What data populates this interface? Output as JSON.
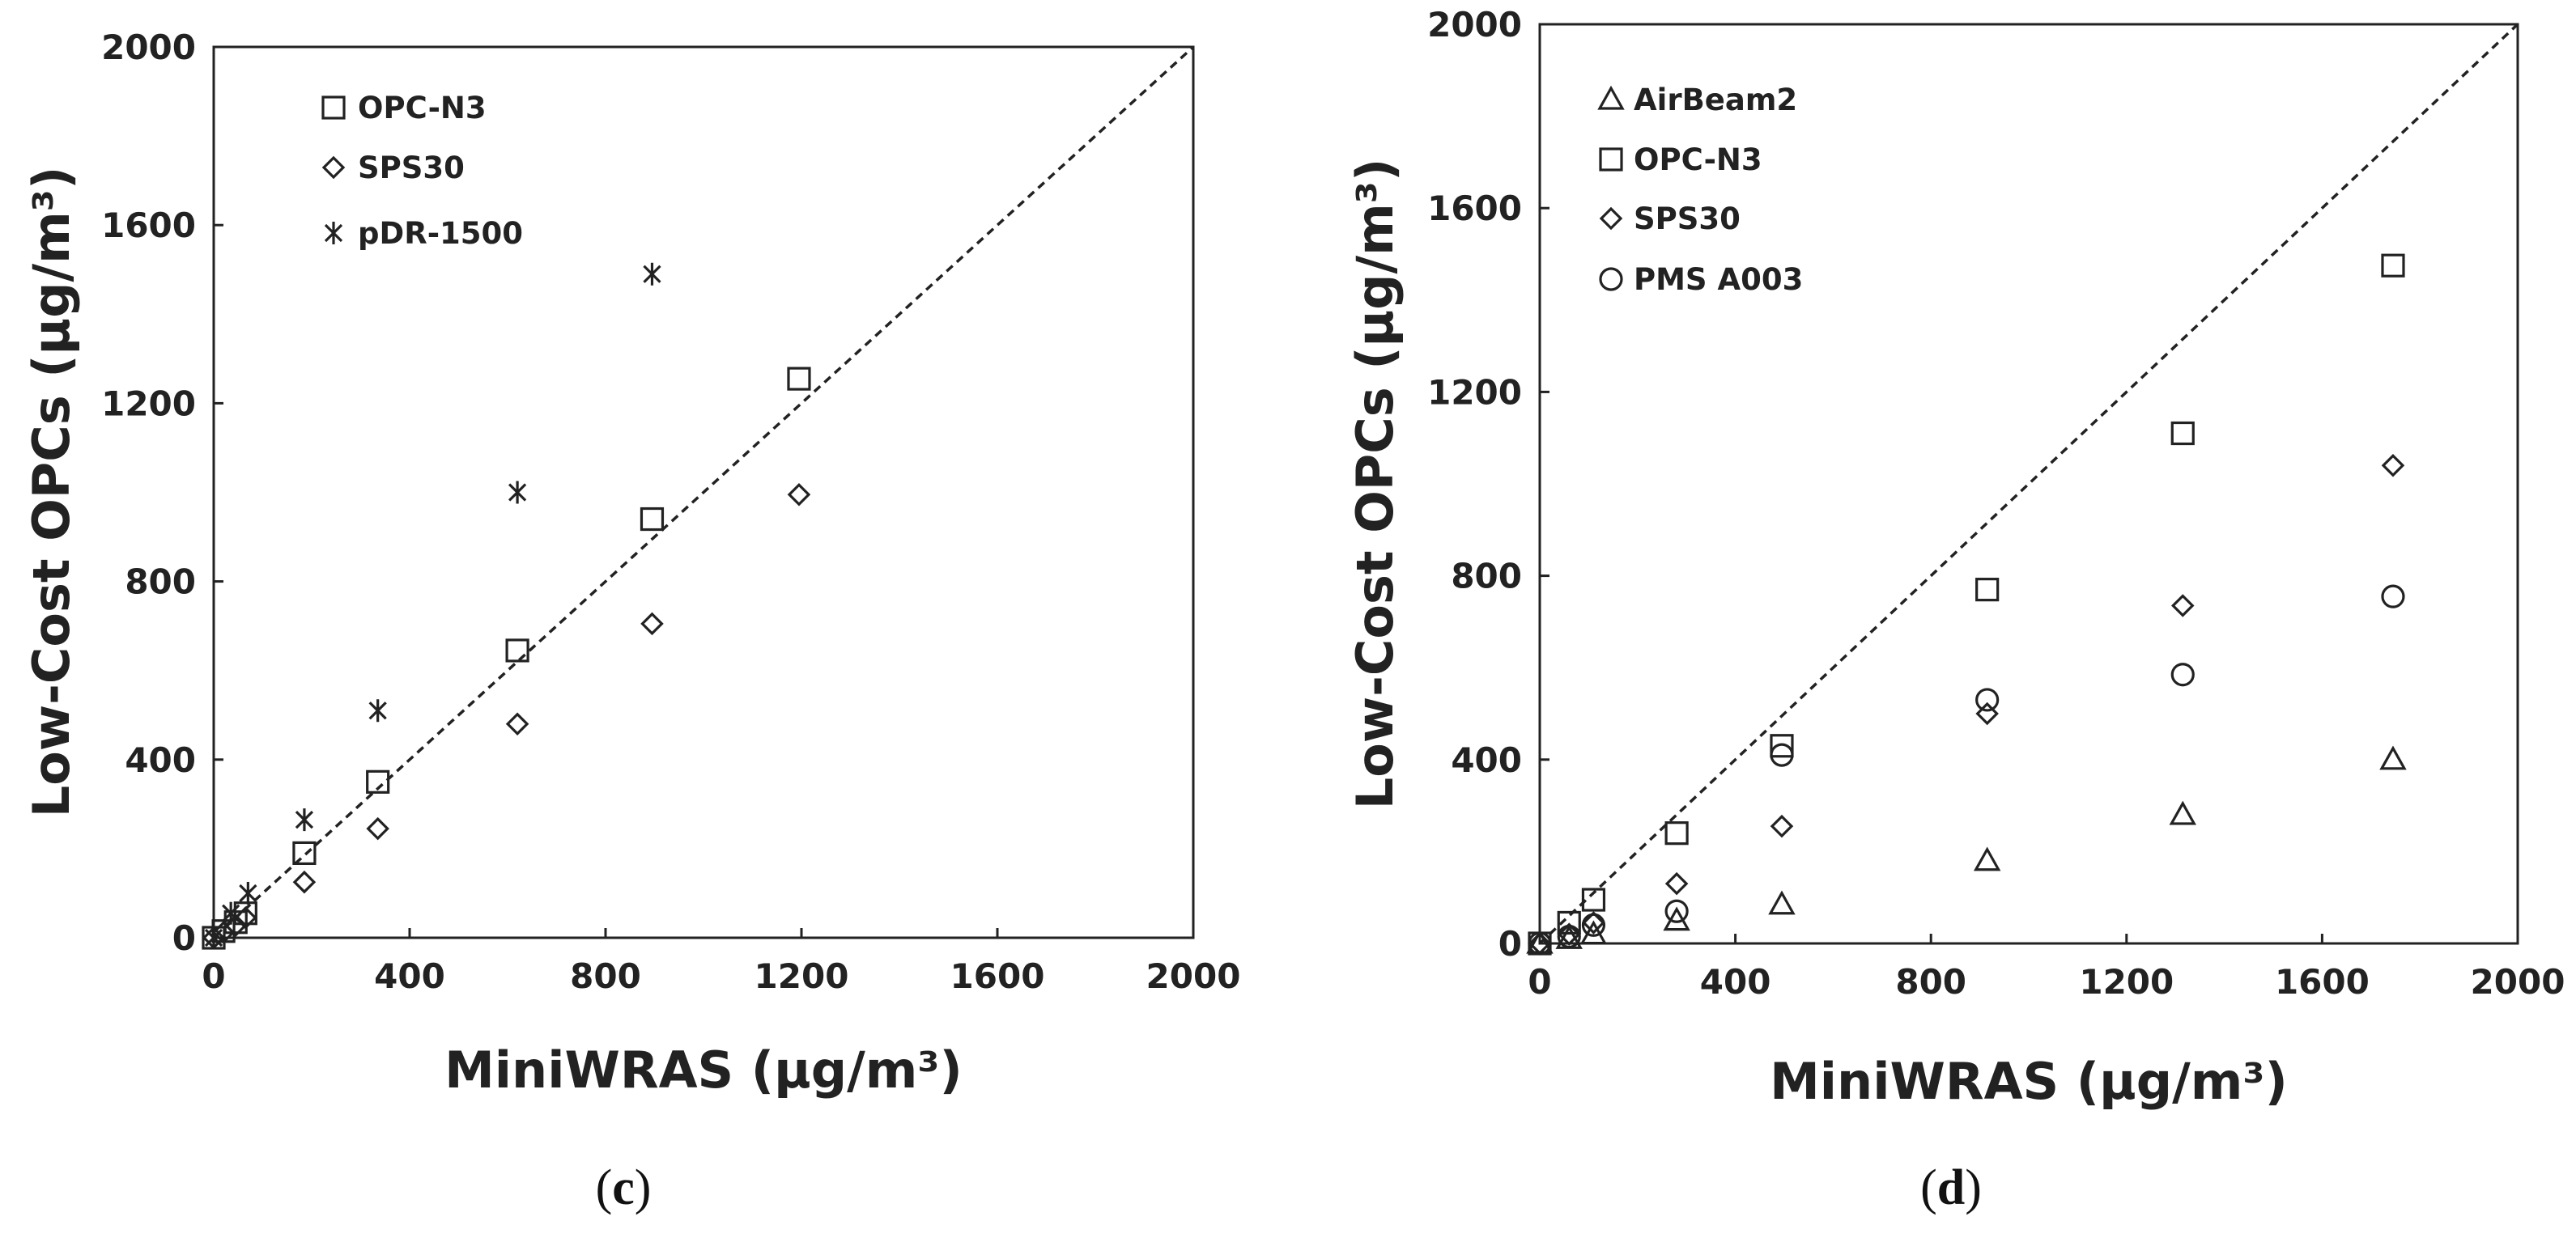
{
  "chart_data": [
    {
      "type": "scatter",
      "panel_label": {
        "open": "(",
        "letter": "c",
        "close": ")"
      },
      "xlabel": "MiniWRAS (μg/m³)",
      "ylabel": "Low-Cost OPCs (μg/m³)",
      "xlim": [
        0,
        2000
      ],
      "ylim": [
        0,
        2000
      ],
      "x_ticks": [
        "0",
        "400",
        "800",
        "1200",
        "1600",
        "2000"
      ],
      "y_ticks": [
        "0",
        "400",
        "800",
        "1200",
        "1600",
        "2000"
      ],
      "grid": false,
      "reference_line": "1:1 dashed",
      "legend_position": "top-left",
      "series": [
        {
          "name": "OPC-N3",
          "marker": "square",
          "points": [
            [
              0,
              0
            ],
            [
              20,
              15
            ],
            [
              45,
              35
            ],
            [
              65,
              55
            ],
            [
              185,
              190
            ],
            [
              335,
              350
            ],
            [
              620,
              645
            ],
            [
              895,
              940
            ],
            [
              1195,
              1255
            ]
          ]
        },
        {
          "name": "SPS30",
          "marker": "diamond",
          "points": [
            [
              0,
              0
            ],
            [
              20,
              12
            ],
            [
              45,
              28
            ],
            [
              65,
              45
            ],
            [
              185,
              125
            ],
            [
              335,
              245
            ],
            [
              620,
              480
            ],
            [
              895,
              705
            ],
            [
              1195,
              995
            ]
          ]
        },
        {
          "name": "pDR-1500",
          "marker": "asterisk",
          "points": [
            [
              0,
              0
            ],
            [
              35,
              55
            ],
            [
              70,
              100
            ],
            [
              185,
              265
            ],
            [
              335,
              510
            ],
            [
              620,
              1000
            ],
            [
              895,
              1490
            ]
          ]
        }
      ]
    },
    {
      "type": "scatter",
      "panel_label": {
        "open": "(",
        "letter": "d",
        "close": ")"
      },
      "xlabel": "MiniWRAS (μg/m³)",
      "ylabel": "Low-Cost OPCs (μg/m³)",
      "xlim": [
        0,
        2000
      ],
      "ylim": [
        0,
        2000
      ],
      "x_ticks": [
        "0",
        "400",
        "800",
        "1200",
        "1600",
        "2000"
      ],
      "y_ticks": [
        "0",
        "400",
        "800",
        "1200",
        "1600",
        "2000"
      ],
      "grid": false,
      "reference_line": "1:1 dashed",
      "legend_position": "top-left",
      "series": [
        {
          "name": "AirBeam2",
          "marker": "triangle",
          "points": [
            [
              0,
              0
            ],
            [
              60,
              10
            ],
            [
              110,
              20
            ],
            [
              280,
              50
            ],
            [
              495,
              85
            ],
            [
              915,
              180
            ],
            [
              1315,
              280
            ],
            [
              1745,
              400
            ]
          ]
        },
        {
          "name": "OPC-N3",
          "marker": "square",
          "points": [
            [
              0,
              0
            ],
            [
              60,
              45
            ],
            [
              110,
              95
            ],
            [
              280,
              240
            ],
            [
              495,
              430
            ],
            [
              915,
              770
            ],
            [
              1315,
              1110
            ],
            [
              1745,
              1475
            ]
          ]
        },
        {
          "name": "SPS30",
          "marker": "diamond",
          "points": [
            [
              0,
              0
            ],
            [
              60,
              20
            ],
            [
              110,
              45
            ],
            [
              280,
              130
            ],
            [
              495,
              255
            ],
            [
              915,
              500
            ],
            [
              1315,
              735
            ],
            [
              1745,
              1040
            ]
          ]
        },
        {
          "name": "PMS A003",
          "marker": "circle",
          "points": [
            [
              0,
              0
            ],
            [
              60,
              15
            ],
            [
              110,
              40
            ],
            [
              280,
              70
            ],
            [
              495,
              410
            ],
            [
              915,
              530
            ],
            [
              1315,
              585
            ],
            [
              1745,
              755
            ]
          ]
        }
      ]
    }
  ]
}
